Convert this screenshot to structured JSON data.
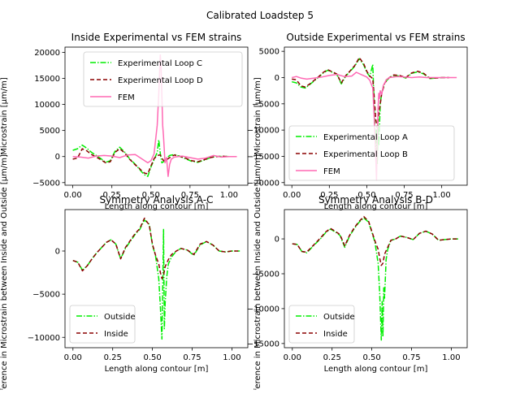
{
  "suptitle": "Calibrated Loadstep 5",
  "colors": {
    "experimental_green": "#00ee00",
    "experimental_darkred": "#8b0000",
    "fem_pink": "#ff69b4",
    "frame": "#000000"
  },
  "chart_data": [
    {
      "type": "line",
      "title": "Inside Experimental vs FEM strains",
      "xlabel": "Length along contour [m]",
      "ylabel": "Microstrain [µm/m]",
      "xlim": [
        -0.05,
        1.12
      ],
      "ylim": [
        -5500,
        21000
      ],
      "xticks": [
        "0.00",
        "0.25",
        "0.50",
        "0.75",
        "1.00"
      ],
      "xtick_values": [
        0,
        0.25,
        0.5,
        0.75,
        1.0
      ],
      "yticks": [
        "−5000",
        "0",
        "5000",
        "10000",
        "15000",
        "20000"
      ],
      "ytick_values": [
        -5000,
        0,
        5000,
        10000,
        15000,
        20000
      ],
      "legend_position": "upper center",
      "series": [
        {
          "name": "Experimental Loop C",
          "color": "#00ee00",
          "style": "dashdot",
          "x": [
            0,
            0.03,
            0.06,
            0.09,
            0.12,
            0.15,
            0.18,
            0.21,
            0.24,
            0.27,
            0.3,
            0.32,
            0.34,
            0.36,
            0.38,
            0.4,
            0.42,
            0.44,
            0.46,
            0.48,
            0.5,
            0.52,
            0.54,
            0.55,
            0.56,
            0.57,
            0.58,
            0.6,
            0.62,
            0.65,
            0.68,
            0.72,
            0.76,
            0.8,
            0.84,
            0.88,
            0.92,
            0.96,
            1.0,
            1.05
          ],
          "y": [
            1200,
            1500,
            2200,
            1600,
            800,
            200,
            -400,
            -1100,
            -800,
            1000,
            1800,
            1200,
            600,
            -300,
            -900,
            -1500,
            -2200,
            -2900,
            -3500,
            -3800,
            -2000,
            -600,
            800,
            3200,
            600,
            -1200,
            -1000,
            -300,
            200,
            400,
            100,
            -400,
            -900,
            -1100,
            -700,
            -200,
            0,
            50,
            0,
            0
          ]
        },
        {
          "name": "Experimental Loop D",
          "color": "#8b0000",
          "style": "dashed",
          "x": [
            0,
            0.03,
            0.06,
            0.09,
            0.12,
            0.15,
            0.18,
            0.21,
            0.24,
            0.27,
            0.3,
            0.32,
            0.34,
            0.36,
            0.38,
            0.4,
            0.42,
            0.44,
            0.46,
            0.48,
            0.5,
            0.52,
            0.54,
            0.56,
            0.58,
            0.6,
            0.62,
            0.65,
            0.68,
            0.72,
            0.76,
            0.8,
            0.84,
            0.88,
            0.92,
            0.96,
            1.0,
            1.05
          ],
          "y": [
            -500,
            -300,
            1500,
            1100,
            400,
            -100,
            -600,
            -1200,
            -1000,
            800,
            1500,
            1000,
            400,
            -400,
            -1000,
            -1600,
            -2100,
            -2700,
            -3200,
            -3300,
            -1800,
            -400,
            200,
            300,
            -800,
            -600,
            -200,
            300,
            100,
            -300,
            -800,
            -1000,
            -600,
            -200,
            0,
            50,
            0,
            0
          ]
        },
        {
          "name": "FEM",
          "color": "#ff69b4",
          "style": "solid",
          "x": [
            0,
            0.05,
            0.1,
            0.15,
            0.2,
            0.25,
            0.3,
            0.35,
            0.4,
            0.45,
            0.48,
            0.5,
            0.52,
            0.54,
            0.55,
            0.56,
            0.565,
            0.57,
            0.575,
            0.58,
            0.59,
            0.6,
            0.61,
            0.62,
            0.63,
            0.65,
            0.7,
            0.75,
            0.8,
            0.85,
            0.9,
            0.95,
            1.0,
            1.05
          ],
          "y": [
            0,
            -100,
            -300,
            100,
            200,
            100,
            -200,
            300,
            400,
            -600,
            -1200,
            -800,
            500,
            6000,
            12000,
            19500,
            17000,
            12000,
            6000,
            4000,
            -1200,
            -200,
            -3800,
            -1500,
            -500,
            -100,
            100,
            -200,
            -500,
            -300,
            200,
            -100,
            0,
            0
          ]
        }
      ]
    },
    {
      "type": "line",
      "title": "Outside Experimental vs FEM strains",
      "xlabel": "Length along contour [m]",
      "ylabel": "Microstrain [µm/m]",
      "xlim": [
        -0.05,
        1.17
      ],
      "ylim": [
        -20500,
        5800
      ],
      "xticks": [
        "0.00",
        "0.25",
        "0.50",
        "0.75",
        "1.00"
      ],
      "xtick_values": [
        0,
        0.25,
        0.5,
        0.75,
        1.0
      ],
      "yticks": [
        "−20000",
        "−15000",
        "−10000",
        "−5000",
        "0",
        "5000"
      ],
      "ytick_values": [
        -20000,
        -15000,
        -10000,
        -5000,
        0,
        5000
      ],
      "legend_position": "lower left",
      "series": [
        {
          "name": "Experimental Loop A",
          "color": "#00ee00",
          "style": "dashdot",
          "x": [
            0,
            0.03,
            0.06,
            0.09,
            0.12,
            0.15,
            0.18,
            0.21,
            0.24,
            0.27,
            0.3,
            0.33,
            0.36,
            0.39,
            0.42,
            0.45,
            0.48,
            0.5,
            0.52,
            0.54,
            0.55,
            0.56,
            0.565,
            0.57,
            0.575,
            0.58,
            0.59,
            0.6,
            0.62,
            0.65,
            0.68,
            0.72,
            0.76,
            0.8,
            0.84,
            0.88,
            0.92,
            0.96,
            1.0,
            1.05
          ],
          "y": [
            -800,
            -1000,
            -1800,
            -2000,
            -1300,
            -600,
            100,
            900,
            1400,
            1000,
            600,
            -1200,
            300,
            1200,
            2200,
            3600,
            2400,
            1000,
            200,
            2500,
            -6000,
            -15000,
            -10000,
            -16500,
            -9000,
            -13000,
            -5000,
            -2800,
            -1000,
            0,
            400,
            300,
            -100,
            800,
            1100,
            700,
            -200,
            -100,
            0,
            0
          ]
        },
        {
          "name": "Experimental Loop B",
          "color": "#8b0000",
          "style": "dashed",
          "x": [
            0,
            0.03,
            0.06,
            0.09,
            0.12,
            0.15,
            0.18,
            0.21,
            0.24,
            0.27,
            0.3,
            0.33,
            0.36,
            0.39,
            0.42,
            0.45,
            0.48,
            0.5,
            0.52,
            0.54,
            0.55,
            0.56,
            0.57,
            0.58,
            0.59,
            0.6,
            0.62,
            0.65,
            0.68,
            0.72,
            0.76,
            0.8,
            0.84,
            0.88,
            0.92,
            0.96,
            1.0,
            1.05
          ],
          "y": [
            -300,
            -400,
            -1600,
            -1800,
            -1200,
            -500,
            200,
            1000,
            1500,
            1100,
            700,
            -1000,
            400,
            1300,
            2300,
            3800,
            2600,
            1200,
            300,
            -200,
            -4000,
            -8000,
            -9500,
            -7000,
            -5000,
            -3000,
            -1000,
            0,
            500,
            400,
            0,
            900,
            1200,
            800,
            -100,
            -100,
            0,
            0
          ]
        },
        {
          "name": "FEM",
          "color": "#ff69b4",
          "style": "solid",
          "x": [
            0,
            0.03,
            0.06,
            0.1,
            0.15,
            0.2,
            0.25,
            0.3,
            0.35,
            0.4,
            0.43,
            0.46,
            0.5,
            0.52,
            0.54,
            0.55,
            0.56,
            0.565,
            0.57,
            0.575,
            0.58,
            0.585,
            0.59,
            0.6,
            0.61,
            0.62,
            0.63,
            0.65,
            0.7,
            0.75,
            0.8,
            0.85,
            0.9,
            0.95,
            1.0,
            1.05,
            1.1
          ],
          "y": [
            0,
            200,
            -100,
            -300,
            -100,
            100,
            400,
            600,
            200,
            300,
            1000,
            600,
            100,
            -500,
            -2000,
            -8000,
            -15500,
            -19500,
            -12000,
            -6000,
            -3000,
            -4000,
            -2500,
            -3200,
            -1500,
            -1000,
            -400,
            0,
            200,
            100,
            0,
            100,
            0,
            0,
            0,
            0,
            0
          ]
        }
      ]
    },
    {
      "type": "line",
      "title": "Symmetry Analysis A-C",
      "xlabel": "Length along contour [m]",
      "ylabel": "Difference in Microstrain between Inside and Outside [µm/m]",
      "xlim": [
        -0.05,
        1.1
      ],
      "ylim": [
        -11200,
        4800
      ],
      "xticks": [
        "0.00",
        "0.25",
        "0.50",
        "0.75",
        "1.00"
      ],
      "xtick_values": [
        0,
        0.25,
        0.5,
        0.75,
        1.0
      ],
      "yticks": [
        "−10000",
        "−5000",
        "0"
      ],
      "ytick_values": [
        -10000,
        -5000,
        0
      ],
      "legend_position": "lower left",
      "series": [
        {
          "name": "Outside",
          "color": "#00ee00",
          "style": "dashdot",
          "x": [
            0,
            0.03,
            0.06,
            0.09,
            0.12,
            0.15,
            0.18,
            0.21,
            0.24,
            0.27,
            0.3,
            0.33,
            0.36,
            0.39,
            0.42,
            0.45,
            0.48,
            0.5,
            0.52,
            0.54,
            0.55,
            0.56,
            0.565,
            0.57,
            0.575,
            0.58,
            0.59,
            0.6,
            0.62,
            0.65,
            0.68,
            0.72,
            0.76,
            0.8,
            0.84,
            0.88,
            0.92,
            0.96,
            1.0,
            1.05
          ],
          "y": [
            -1100,
            -1300,
            -2200,
            -1700,
            -900,
            -200,
            400,
            1000,
            1300,
            800,
            -900,
            300,
            1100,
            1900,
            2500,
            3600,
            3100,
            700,
            -600,
            -3200,
            -6500,
            -10200,
            -4000,
            2500,
            -9000,
            -6000,
            -3000,
            -1500,
            -700,
            0,
            300,
            100,
            -500,
            700,
            1100,
            700,
            0,
            -100,
            0,
            0
          ]
        },
        {
          "name": "Inside",
          "color": "#8b0000",
          "style": "dashed",
          "x": [
            0,
            0.03,
            0.06,
            0.09,
            0.12,
            0.15,
            0.18,
            0.21,
            0.24,
            0.27,
            0.3,
            0.33,
            0.36,
            0.39,
            0.42,
            0.45,
            0.48,
            0.5,
            0.52,
            0.54,
            0.55,
            0.56,
            0.57,
            0.58,
            0.6,
            0.62,
            0.65,
            0.68,
            0.72,
            0.76,
            0.8,
            0.84,
            0.88,
            0.92,
            0.96,
            1.0,
            1.05
          ],
          "y": [
            -1100,
            -1300,
            -2300,
            -1700,
            -900,
            -200,
            400,
            1000,
            1300,
            800,
            -900,
            400,
            1200,
            2000,
            2600,
            3800,
            3000,
            800,
            -500,
            -1500,
            -2500,
            -3200,
            -2800,
            -1800,
            -1000,
            -400,
            0,
            300,
            100,
            -400,
            800,
            1100,
            700,
            0,
            -100,
            0,
            0
          ]
        }
      ]
    },
    {
      "type": "line",
      "title": "Symmetry Analysis B-D",
      "xlabel": "Length along contour [m]",
      "ylabel": "Difference in Microstrain between Inside and Outside [µm/m]",
      "xlim": [
        -0.05,
        1.1
      ],
      "ylim": [
        -15600,
        4200
      ],
      "xticks": [
        "0.00",
        "0.25",
        "0.50",
        "0.75",
        "1.00"
      ],
      "xtick_values": [
        0,
        0.25,
        0.5,
        0.75,
        1.0
      ],
      "yticks": [
        "−15000",
        "−10000",
        "−5000",
        "0"
      ],
      "ytick_values": [
        -15000,
        -10000,
        -5000,
        0
      ],
      "legend_position": "lower left",
      "series": [
        {
          "name": "Outside",
          "color": "#00ee00",
          "style": "dashdot",
          "x": [
            0,
            0.03,
            0.06,
            0.09,
            0.12,
            0.15,
            0.18,
            0.21,
            0.24,
            0.27,
            0.3,
            0.33,
            0.36,
            0.39,
            0.42,
            0.45,
            0.48,
            0.5,
            0.52,
            0.54,
            0.55,
            0.56,
            0.565,
            0.57,
            0.575,
            0.58,
            0.59,
            0.6,
            0.62,
            0.65,
            0.68,
            0.72,
            0.76,
            0.8,
            0.84,
            0.88,
            0.92,
            0.96,
            1.0,
            1.05
          ],
          "y": [
            -700,
            -800,
            -1800,
            -2000,
            -1300,
            -600,
            100,
            900,
            1400,
            1000,
            500,
            -1200,
            400,
            1500,
            2400,
            3000,
            2400,
            1000,
            -500,
            -3500,
            -8000,
            -14500,
            -9000,
            -14000,
            -7000,
            -8500,
            -3000,
            -1500,
            -200,
            0,
            400,
            200,
            -100,
            800,
            1100,
            700,
            -200,
            -100,
            0,
            0
          ]
        },
        {
          "name": "Inside",
          "color": "#8b0000",
          "style": "dashed",
          "x": [
            0,
            0.03,
            0.06,
            0.09,
            0.12,
            0.15,
            0.18,
            0.21,
            0.24,
            0.27,
            0.3,
            0.33,
            0.36,
            0.39,
            0.42,
            0.45,
            0.48,
            0.5,
            0.52,
            0.54,
            0.55,
            0.56,
            0.57,
            0.58,
            0.6,
            0.62,
            0.65,
            0.68,
            0.72,
            0.76,
            0.8,
            0.84,
            0.88,
            0.92,
            0.96,
            1.0,
            1.05
          ],
          "y": [
            -700,
            -800,
            -1800,
            -1900,
            -1200,
            -500,
            200,
            1000,
            1500,
            1100,
            600,
            -1000,
            500,
            1600,
            2500,
            3200,
            2500,
            1100,
            -300,
            -1500,
            -2800,
            -3800,
            -3500,
            -2200,
            -1200,
            -200,
            0,
            400,
            200,
            -100,
            800,
            1100,
            700,
            -200,
            -100,
            0,
            0
          ]
        }
      ]
    }
  ]
}
